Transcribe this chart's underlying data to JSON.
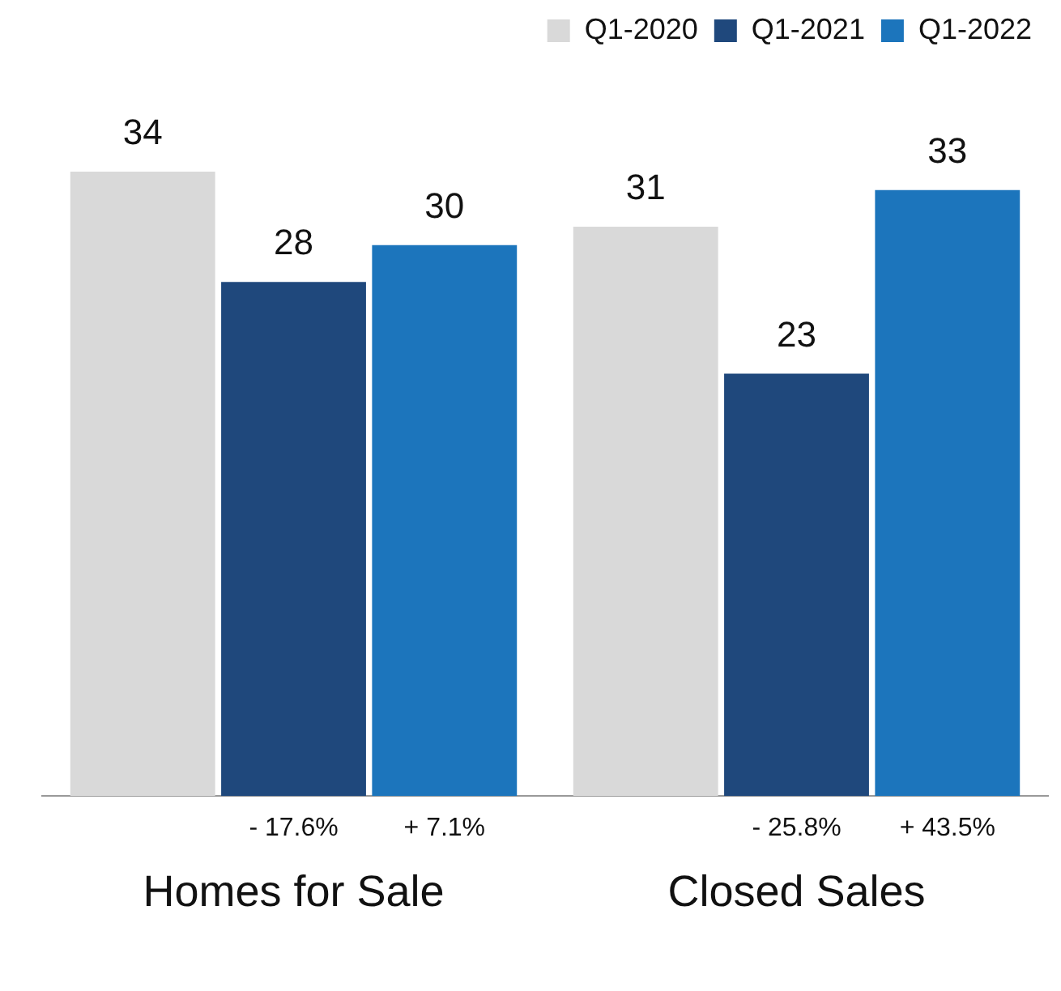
{
  "chart_data": {
    "type": "bar",
    "categories": [
      "Homes for Sale",
      "Closed Sales"
    ],
    "series": [
      {
        "name": "Q1-2020",
        "color": "#d9d9d9",
        "values": [
          34,
          31
        ]
      },
      {
        "name": "Q1-2021",
        "color": "#1f487c",
        "values": [
          28,
          23
        ]
      },
      {
        "name": "Q1-2022",
        "color": "#1c75bc",
        "values": [
          30,
          33
        ]
      }
    ],
    "data_labels": true,
    "legend": "top right",
    "grid": false,
    "annotations": [
      "- 17.6%",
      "+ 7.1%",
      "- 25.8%",
      "+ 43.5%"
    ]
  }
}
